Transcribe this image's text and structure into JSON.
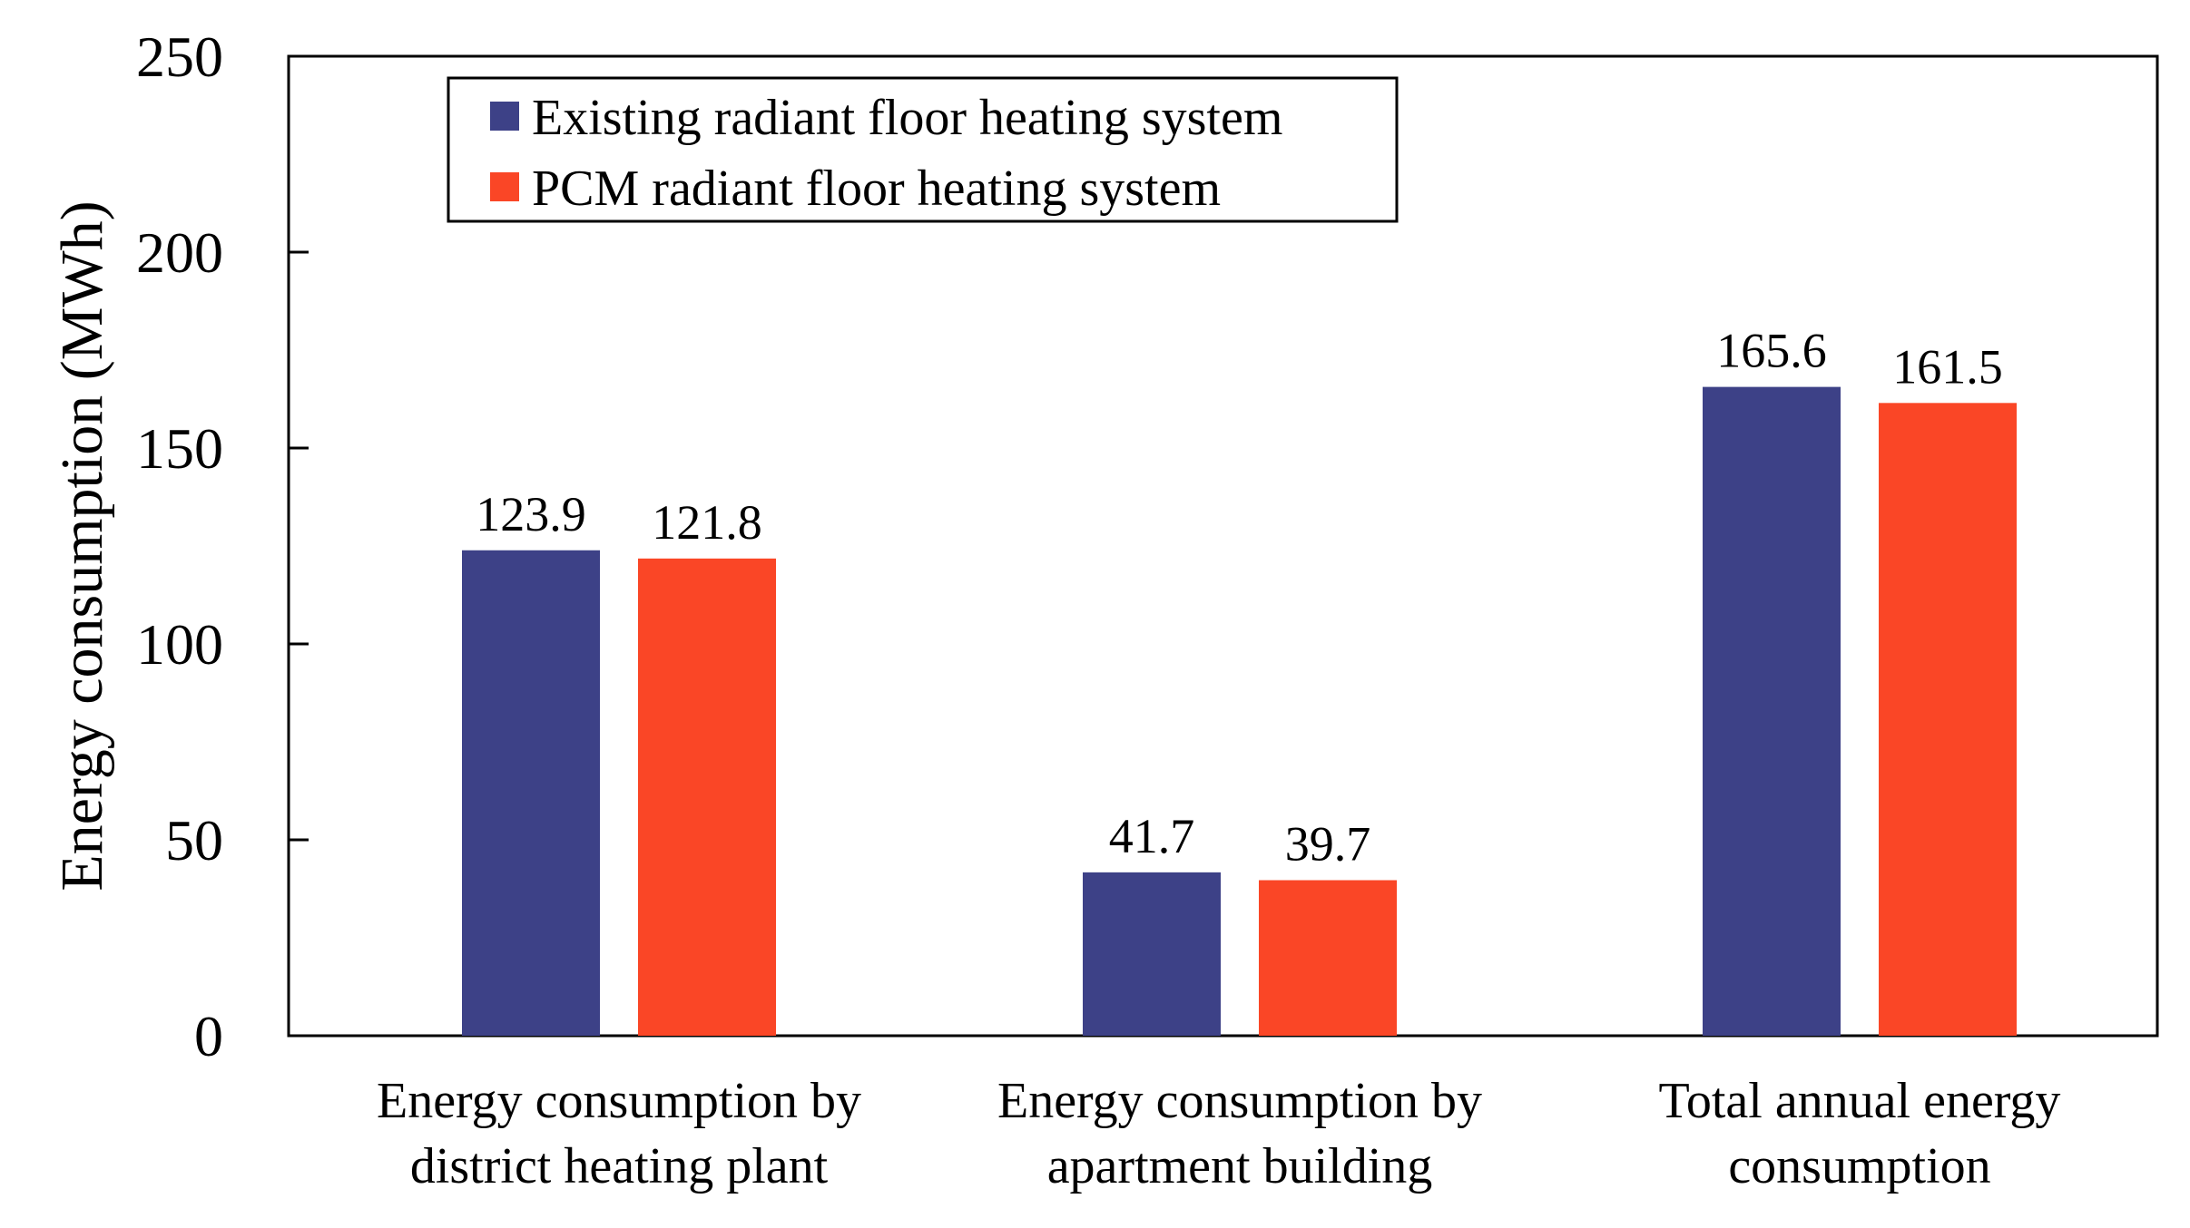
{
  "chart_data": {
    "type": "bar",
    "title": "",
    "xlabel": "",
    "ylabel": "Energy consumption (MWh)",
    "ylim": [
      0,
      250
    ],
    "yticks": [
      0,
      50,
      100,
      150,
      200,
      250
    ],
    "grid": false,
    "legend_position": "top-left",
    "categories": [
      [
        "Energy consumption by",
        "district heating plant"
      ],
      [
        "Energy consumption by",
        "apartment building"
      ],
      [
        "Total annual energy",
        "consumption"
      ]
    ],
    "series": [
      {
        "name": "Existing radiant floor heating system",
        "color": "#3d4187",
        "values": [
          123.9,
          41.7,
          165.6
        ]
      },
      {
        "name": "PCM radiant floor heating system",
        "color": "#fa4626",
        "values": [
          121.8,
          39.7,
          161.5
        ]
      }
    ]
  }
}
